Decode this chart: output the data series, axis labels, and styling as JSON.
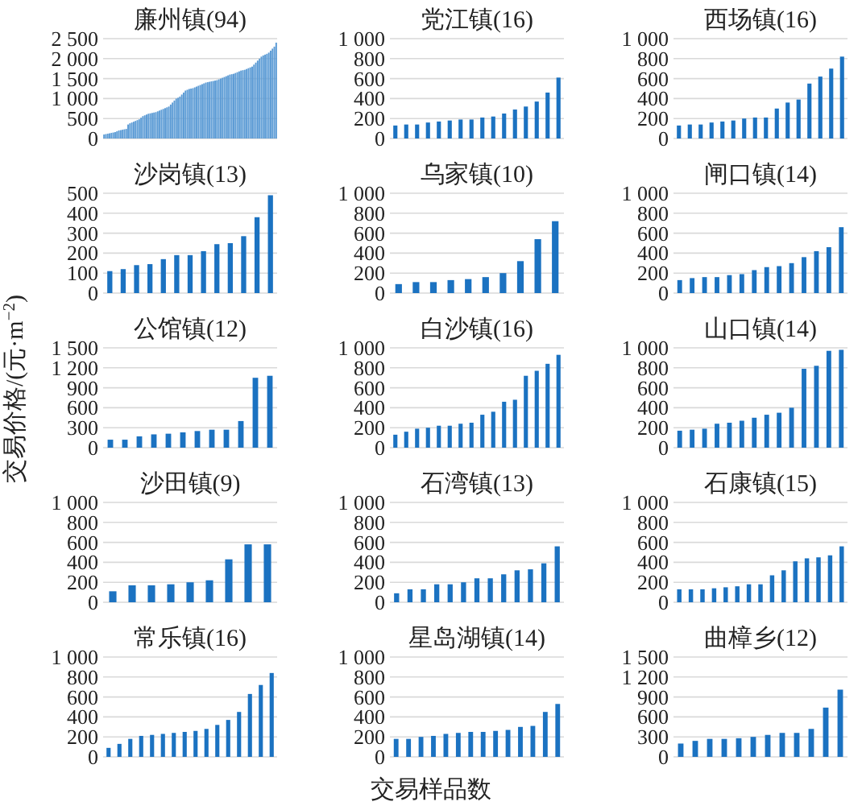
{
  "chart_data": [
    {
      "type": "bar",
      "title": "廉州镇(94)",
      "color": "#5b9bd5",
      "categories": [
        null,
        null,
        null,
        null,
        null,
        null,
        null,
        null,
        null,
        null,
        null,
        null,
        null,
        null,
        null,
        null,
        null,
        null,
        null,
        null,
        null,
        null,
        null,
        null,
        null,
        null,
        null,
        null,
        null,
        null,
        null,
        null,
        null,
        null,
        null,
        null,
        null,
        null,
        null,
        null,
        null,
        null,
        null,
        null,
        null,
        null,
        null,
        null,
        null,
        null,
        null,
        null,
        null,
        null,
        null,
        null,
        null,
        null,
        null,
        null,
        null,
        null,
        null,
        null,
        null,
        null,
        null,
        null,
        null,
        null,
        null,
        null,
        null,
        null,
        null,
        null,
        null,
        null,
        null,
        null,
        null,
        null,
        null,
        null,
        null,
        null,
        null,
        null,
        null,
        null,
        null,
        null,
        null,
        null
      ],
      "values": [
        100,
        110,
        120,
        130,
        140,
        150,
        160,
        180,
        200,
        210,
        220,
        230,
        240,
        350,
        380,
        400,
        420,
        440,
        460,
        480,
        520,
        560,
        580,
        600,
        620,
        630,
        640,
        650,
        660,
        680,
        700,
        720,
        740,
        760,
        780,
        800,
        850,
        900,
        950,
        1000,
        1020,
        1050,
        1100,
        1150,
        1200,
        1220,
        1240,
        1250,
        1260,
        1280,
        1300,
        1320,
        1340,
        1360,
        1380,
        1400,
        1410,
        1420,
        1430,
        1440,
        1450,
        1460,
        1480,
        1500,
        1520,
        1540,
        1560,
        1580,
        1600,
        1610,
        1620,
        1640,
        1660,
        1680,
        1700,
        1710,
        1720,
        1740,
        1760,
        1780,
        1800,
        1850,
        1900,
        1950,
        2000,
        2050,
        2080,
        2100,
        2120,
        2150,
        2200,
        2250,
        2300,
        2400
      ],
      "ylim": [
        0,
        2500
      ],
      "yticks": [
        0,
        500,
        {
          "value": 1000,
          "label": "1 000"
        },
        {
          "value": 1500,
          "label": "1 500"
        },
        {
          "value": 2000,
          "label": "2 000"
        },
        {
          "value": 2500,
          "label": "2 500"
        }
      ],
      "grid": "y",
      "tick_labels": "y"
    },
    {
      "type": "bar",
      "title": "党江镇(16)",
      "color": "#1b72c1",
      "categories": [
        null,
        null,
        null,
        null,
        null,
        null,
        null,
        null,
        null,
        null,
        null,
        null,
        null,
        null,
        null,
        null
      ],
      "values": [
        130,
        140,
        140,
        160,
        170,
        180,
        190,
        190,
        210,
        220,
        250,
        290,
        320,
        370,
        460,
        610
      ],
      "ylim": [
        0,
        1000
      ],
      "yticks": [
        0,
        200,
        400,
        600,
        800,
        {
          "value": 1000,
          "label": "1 000"
        }
      ],
      "grid": "y",
      "tick_labels": "y"
    },
    {
      "type": "bar",
      "title": "西场镇(16)",
      "color": "#1b72c1",
      "categories": [
        null,
        null,
        null,
        null,
        null,
        null,
        null,
        null,
        null,
        null,
        null,
        null,
        null,
        null,
        null,
        null
      ],
      "values": [
        130,
        140,
        140,
        160,
        170,
        180,
        200,
        210,
        210,
        300,
        360,
        390,
        550,
        620,
        700,
        820
      ],
      "ylim": [
        0,
        1000
      ],
      "yticks": [
        0,
        200,
        400,
        600,
        800,
        {
          "value": 1000,
          "label": "1 000"
        }
      ],
      "grid": "y",
      "tick_labels": "y"
    },
    {
      "type": "bar",
      "title": "沙岗镇(13)",
      "color": "#1b72c1",
      "categories": [
        null,
        null,
        null,
        null,
        null,
        null,
        null,
        null,
        null,
        null,
        null,
        null,
        null
      ],
      "values": [
        110,
        120,
        140,
        145,
        170,
        190,
        190,
        210,
        245,
        250,
        285,
        380,
        490
      ],
      "ylim": [
        0,
        500
      ],
      "yticks": [
        0,
        100,
        200,
        300,
        400,
        500
      ],
      "grid": "y",
      "tick_labels": "y"
    },
    {
      "type": "bar",
      "title": "乌家镇(10)",
      "color": "#1b72c1",
      "categories": [
        null,
        null,
        null,
        null,
        null,
        null,
        null,
        null,
        null,
        null
      ],
      "values": [
        90,
        110,
        110,
        130,
        140,
        160,
        200,
        320,
        540,
        720
      ],
      "ylim": [
        0,
        1000
      ],
      "yticks": [
        0,
        200,
        400,
        600,
        800,
        {
          "value": 1000,
          "label": "1 000"
        }
      ],
      "grid": "y",
      "tick_labels": "y"
    },
    {
      "type": "bar",
      "title": "闸口镇(14)",
      "color": "#1b72c1",
      "categories": [
        null,
        null,
        null,
        null,
        null,
        null,
        null,
        null,
        null,
        null,
        null,
        null,
        null,
        null
      ],
      "values": [
        130,
        150,
        160,
        160,
        180,
        190,
        230,
        260,
        270,
        300,
        360,
        420,
        460,
        660
      ],
      "ylim": [
        0,
        1000
      ],
      "yticks": [
        0,
        200,
        400,
        600,
        800,
        {
          "value": 1000,
          "label": "1 000"
        }
      ],
      "grid": "y",
      "tick_labels": "y"
    },
    {
      "type": "bar",
      "title": "公馆镇(12)",
      "ylabel": "交易价格/(元·m$^{−2}$)",
      "color": "#1b72c1",
      "categories": [
        null,
        null,
        null,
        null,
        null,
        null,
        null,
        null,
        null,
        null,
        null,
        null
      ],
      "values": [
        120,
        120,
        170,
        200,
        210,
        230,
        250,
        270,
        270,
        400,
        1050,
        1080
      ],
      "ylim": [
        0,
        1500
      ],
      "yticks": [
        0,
        300,
        600,
        900,
        {
          "value": 1200,
          "label": "1 200"
        },
        {
          "value": 1500,
          "label": "1 500"
        }
      ],
      "grid": "y",
      "tick_labels": "y"
    },
    {
      "type": "bar",
      "title": "白沙镇(16)",
      "color": "#1b72c1",
      "categories": [
        null,
        null,
        null,
        null,
        null,
        null,
        null,
        null,
        null,
        null,
        null,
        null,
        null,
        null,
        null,
        null
      ],
      "values": [
        130,
        160,
        190,
        200,
        220,
        220,
        240,
        250,
        330,
        360,
        460,
        480,
        720,
        770,
        840,
        930
      ],
      "ylim": [
        0,
        1000
      ],
      "yticks": [
        0,
        200,
        400,
        600,
        800,
        {
          "value": 1000,
          "label": "1 000"
        }
      ],
      "grid": "y",
      "tick_labels": "y"
    },
    {
      "type": "bar",
      "title": "山口镇(14)",
      "color": "#1b72c1",
      "categories": [
        null,
        null,
        null,
        null,
        null,
        null,
        null,
        null,
        null,
        null,
        null,
        null,
        null,
        null
      ],
      "values": [
        170,
        180,
        190,
        240,
        250,
        270,
        300,
        330,
        350,
        400,
        790,
        820,
        970,
        980
      ],
      "ylim": [
        0,
        1000
      ],
      "yticks": [
        0,
        200,
        400,
        600,
        800,
        {
          "value": 1000,
          "label": "1 000"
        }
      ],
      "grid": "y",
      "tick_labels": "y"
    },
    {
      "type": "bar",
      "title": "沙田镇(9)",
      "color": "#1b72c1",
      "categories": [
        null,
        null,
        null,
        null,
        null,
        null,
        null,
        null,
        null
      ],
      "values": [
        110,
        170,
        170,
        180,
        200,
        220,
        430,
        580,
        580
      ],
      "ylim": [
        0,
        1000
      ],
      "yticks": [
        0,
        200,
        400,
        600,
        800,
        {
          "value": 1000,
          "label": "1 000"
        }
      ],
      "grid": "y",
      "tick_labels": "y"
    },
    {
      "type": "bar",
      "title": "石湾镇(13)",
      "color": "#1b72c1",
      "categories": [
        null,
        null,
        null,
        null,
        null,
        null,
        null,
        null,
        null,
        null,
        null,
        null,
        null
      ],
      "values": [
        90,
        130,
        130,
        180,
        180,
        200,
        240,
        240,
        280,
        320,
        330,
        390,
        560
      ],
      "ylim": [
        0,
        1000
      ],
      "yticks": [
        0,
        200,
        400,
        600,
        800,
        {
          "value": 1000,
          "label": "1 000"
        }
      ],
      "grid": "y",
      "tick_labels": "y"
    },
    {
      "type": "bar",
      "title": "石康镇(15)",
      "color": "#1b72c1",
      "categories": [
        null,
        null,
        null,
        null,
        null,
        null,
        null,
        null,
        null,
        null,
        null,
        null,
        null,
        null,
        null
      ],
      "values": [
        130,
        130,
        130,
        140,
        150,
        160,
        180,
        180,
        270,
        320,
        410,
        440,
        450,
        470,
        560
      ],
      "ylim": [
        0,
        1000
      ],
      "yticks": [
        0,
        200,
        400,
        600,
        800,
        {
          "value": 1000,
          "label": "1 000"
        }
      ],
      "grid": "y",
      "tick_labels": "y"
    },
    {
      "type": "bar",
      "title": "常乐镇(16)",
      "color": "#1b72c1",
      "categories": [
        null,
        null,
        null,
        null,
        null,
        null,
        null,
        null,
        null,
        null,
        null,
        null,
        null,
        null,
        null,
        null
      ],
      "values": [
        90,
        130,
        180,
        210,
        220,
        230,
        240,
        250,
        260,
        280,
        320,
        370,
        450,
        630,
        720,
        840
      ],
      "ylim": [
        0,
        1000
      ],
      "yticks": [
        0,
        200,
        400,
        600,
        800,
        {
          "value": 1000,
          "label": "1 000"
        }
      ],
      "grid": "y",
      "tick_labels": "y"
    },
    {
      "type": "bar",
      "title": "星岛湖镇(14)",
      "xlabel": "交易样品数",
      "color": "#1b72c1",
      "categories": [
        null,
        null,
        null,
        null,
        null,
        null,
        null,
        null,
        null,
        null,
        null,
        null,
        null,
        null
      ],
      "values": [
        180,
        180,
        200,
        210,
        230,
        240,
        250,
        250,
        260,
        270,
        300,
        310,
        450,
        530
      ],
      "ylim": [
        0,
        1000
      ],
      "yticks": [
        0,
        200,
        400,
        600,
        800,
        {
          "value": 1000,
          "label": "1 000"
        }
      ],
      "grid": "y",
      "tick_labels": "y"
    },
    {
      "type": "bar",
      "title": "曲樟乡(12)",
      "color": "#1b72c1",
      "categories": [
        null,
        null,
        null,
        null,
        null,
        null,
        null,
        null,
        null,
        null,
        null,
        null
      ],
      "values": [
        200,
        240,
        270,
        270,
        280,
        300,
        330,
        360,
        360,
        420,
        740,
        1010
      ],
      "ylim": [
        0,
        1500
      ],
      "yticks": [
        0,
        300,
        600,
        900,
        {
          "value": 1200,
          "label": "1 200"
        },
        {
          "value": 1500,
          "label": "1 500"
        }
      ],
      "grid": "y",
      "tick_labels": "y"
    }
  ]
}
